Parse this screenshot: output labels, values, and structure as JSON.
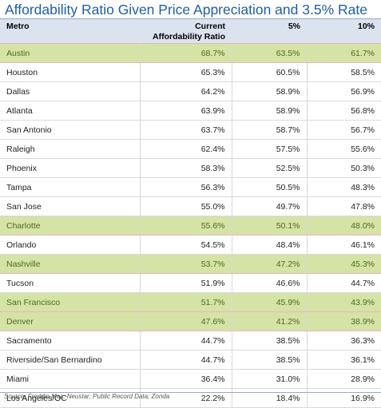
{
  "title": "Affordability Ratio Given Price Appreciation and 3.5% Rate",
  "source": "Source: Freddie Mac; Neustar; Public Record Data; Zonda",
  "colors": {
    "title": "#1f5fa8",
    "header_bg": "#dbe3ef",
    "highlight_bg": "#d5e3a6",
    "highlight_text": "#4a6b1d",
    "highlight_border": "#e4b7bd"
  },
  "chart_data": {
    "type": "table",
    "title": "Affordability Ratio Given Price Appreciation and 3.5% Rate",
    "columns": [
      "Metro",
      "Current Affordability Ratio",
      "5%",
      "10%"
    ],
    "rows": [
      {
        "metro": "Austin",
        "current": "68.7%",
        "p5": "63.5%",
        "p10": "61.7%",
        "highlight": true
      },
      {
        "metro": "Houston",
        "current": "65.3%",
        "p5": "60.5%",
        "p10": "58.5%",
        "highlight": false
      },
      {
        "metro": "Dallas",
        "current": "64.2%",
        "p5": "58.9%",
        "p10": "56.9%",
        "highlight": false
      },
      {
        "metro": "Atlanta",
        "current": "63.9%",
        "p5": "58.9%",
        "p10": "56.8%",
        "highlight": false
      },
      {
        "metro": "San Antonio",
        "current": "63.7%",
        "p5": "58.7%",
        "p10": "56.7%",
        "highlight": false
      },
      {
        "metro": "Raleigh",
        "current": "62.4%",
        "p5": "57.5%",
        "p10": "55.6%",
        "highlight": false
      },
      {
        "metro": "Phoenix",
        "current": "58.3%",
        "p5": "52.5%",
        "p10": "50.3%",
        "highlight": false
      },
      {
        "metro": "Tampa",
        "current": "56.3%",
        "p5": "50.5%",
        "p10": "48.3%",
        "highlight": false
      },
      {
        "metro": "San Jose",
        "current": "55.0%",
        "p5": "49.7%",
        "p10": "47.8%",
        "highlight": false
      },
      {
        "metro": "Charlotte",
        "current": "55.6%",
        "p5": "50.1%",
        "p10": "48.0%",
        "highlight": true
      },
      {
        "metro": "Orlando",
        "current": "54.5%",
        "p5": "48.4%",
        "p10": "46.1%",
        "highlight": false
      },
      {
        "metro": "Nashville",
        "current": "53.7%",
        "p5": "47.2%",
        "p10": "45.3%",
        "highlight": true
      },
      {
        "metro": "Tucson",
        "current": "51.9%",
        "p5": "46.6%",
        "p10": "44.7%",
        "highlight": false
      },
      {
        "metro": "San Francisco",
        "current": "51.7%",
        "p5": "45.9%",
        "p10": "43.9%",
        "highlight": true
      },
      {
        "metro": "Denver",
        "current": "47.6%",
        "p5": "41.2%",
        "p10": "38.9%",
        "highlight": true
      },
      {
        "metro": "Sacramento",
        "current": "44.7%",
        "p5": "38.5%",
        "p10": "36.3%",
        "highlight": false
      },
      {
        "metro": "Riverside/San Bernardino",
        "current": "44.7%",
        "p5": "38.5%",
        "p10": "36.1%",
        "highlight": false
      },
      {
        "metro": "Miami",
        "current": "36.4%",
        "p5": "31.0%",
        "p10": "28.9%",
        "highlight": false
      },
      {
        "metro": "Los Angeles/OC",
        "current": "22.2%",
        "p5": "18.4%",
        "p10": "16.9%",
        "highlight": false
      }
    ]
  }
}
